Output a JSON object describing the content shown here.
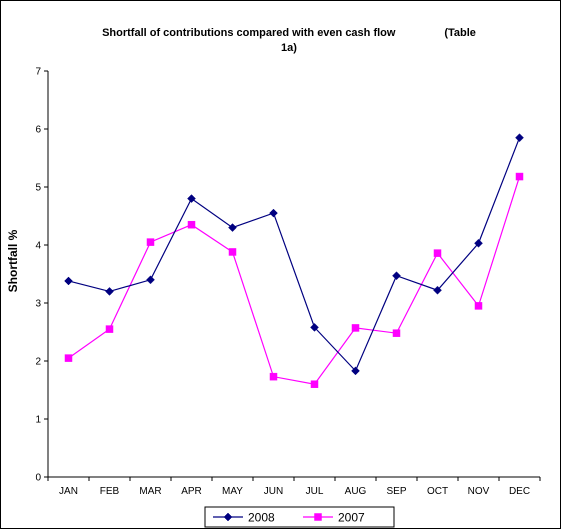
{
  "chart_data": {
    "type": "line",
    "title_line1": "Shortfall of contributions compared with even cash flow                (Table",
    "title_line2": "1a)",
    "xlabel": "",
    "ylabel": "Shortfall %",
    "ylim": [
      0,
      7
    ],
    "yticks": [
      "0",
      "1",
      "2",
      "3",
      "4",
      "5",
      "6",
      "7"
    ],
    "grid": false,
    "legend_position": "bottom",
    "categories": [
      "JAN",
      "FEB",
      "MAR",
      "APR",
      "MAY",
      "JUN",
      "JUL",
      "AUG",
      "SEP",
      "OCT",
      "NOV",
      "DEC"
    ],
    "series": [
      {
        "name": "2008",
        "color": "#000080",
        "marker": "diamond",
        "values": [
          3.38,
          3.2,
          3.4,
          4.8,
          4.3,
          4.55,
          2.58,
          1.83,
          3.47,
          3.22,
          4.03,
          5.85
        ]
      },
      {
        "name": "2007",
        "color": "#FF00FF",
        "marker": "square",
        "values": [
          2.05,
          2.55,
          4.05,
          4.35,
          3.88,
          1.73,
          1.6,
          2.57,
          2.48,
          3.86,
          2.95,
          5.18
        ]
      }
    ]
  }
}
